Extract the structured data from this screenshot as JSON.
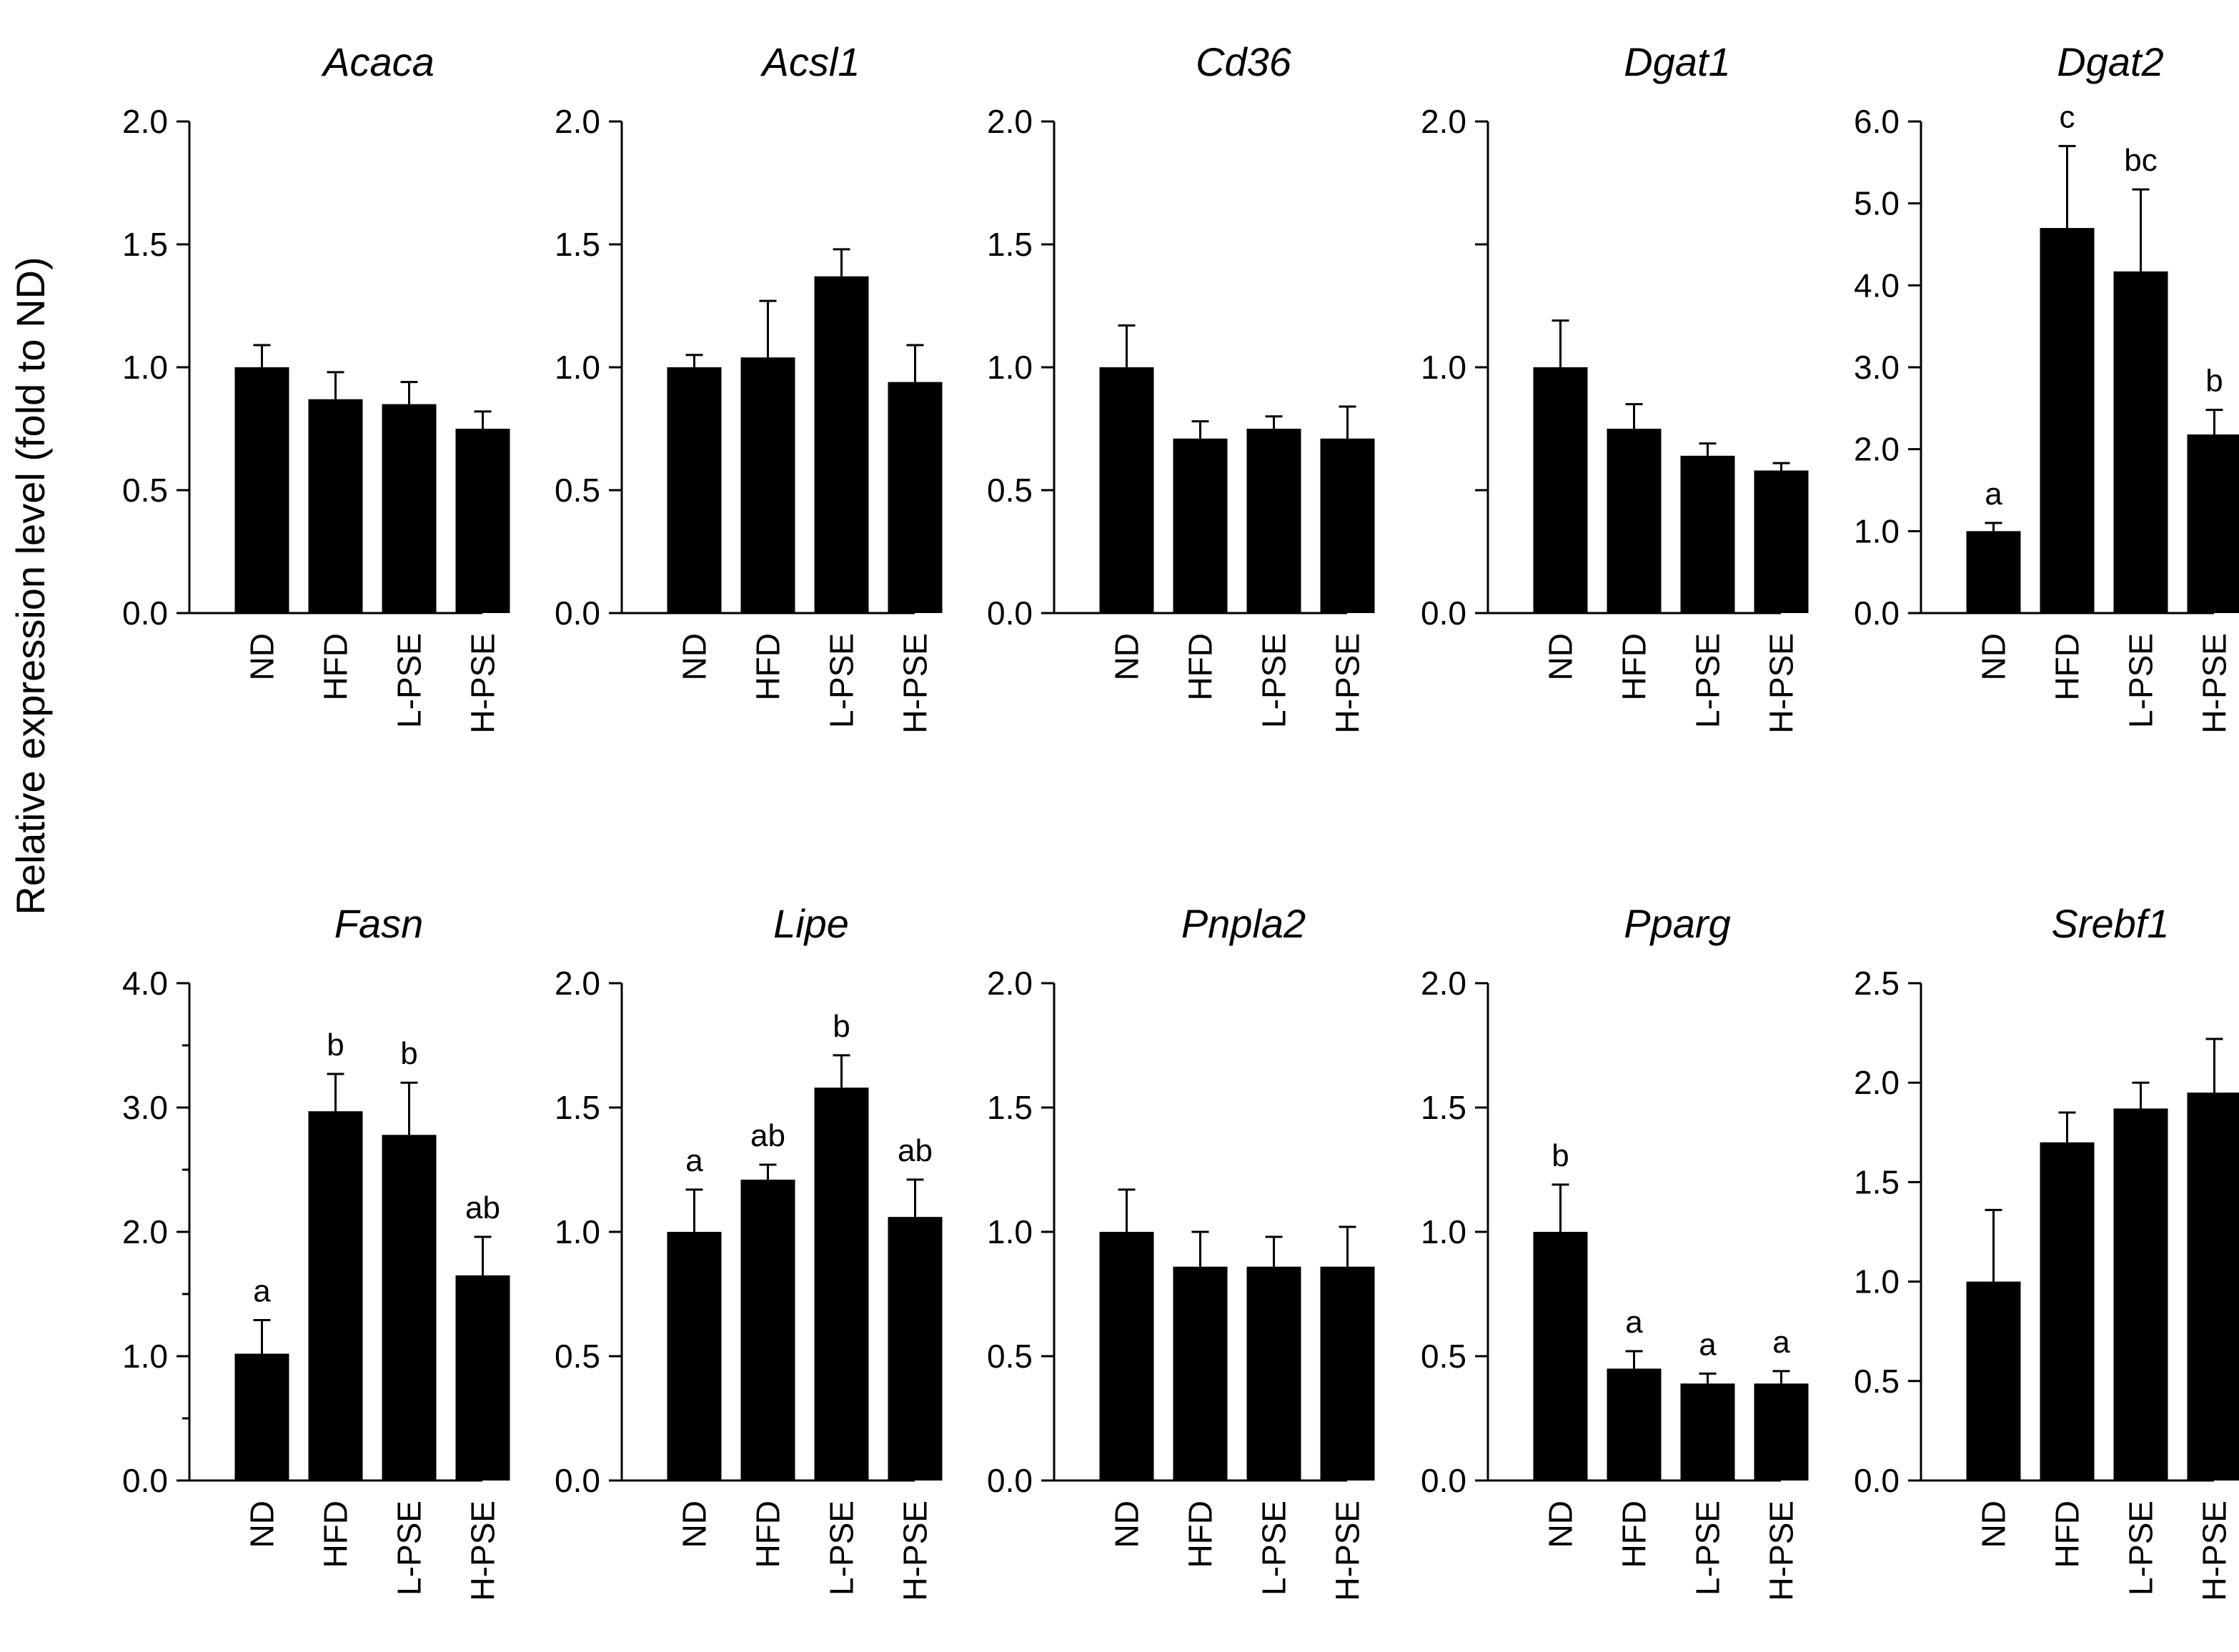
{
  "figure": {
    "ylabel": "Relative expression level (fold to ND)"
  },
  "chart_data": [
    {
      "type": "bar",
      "title": "Acaca",
      "categories": [
        "ND",
        "HFD",
        "L-PSE",
        "H-PSE"
      ],
      "values": [
        1.0,
        0.87,
        0.85,
        0.75
      ],
      "errors": [
        0.09,
        0.11,
        0.09,
        0.07
      ],
      "significance": [
        "",
        "",
        "",
        ""
      ],
      "ylim": [
        0,
        2.0
      ],
      "yticks": [
        "0.0",
        "0.5",
        "1.0",
        "1.5",
        "2.0"
      ],
      "minor_ticks": false
    },
    {
      "type": "bar",
      "title": "Acsl1",
      "categories": [
        "ND",
        "HFD",
        "L-PSE",
        "H-PSE"
      ],
      "values": [
        1.0,
        1.04,
        1.37,
        0.94
      ],
      "errors": [
        0.05,
        0.23,
        0.11,
        0.15
      ],
      "significance": [
        "",
        "",
        "",
        ""
      ],
      "ylim": [
        0,
        2.0
      ],
      "yticks": [
        "0.0",
        "0.5",
        "1.0",
        "1.5",
        "2.0"
      ],
      "minor_ticks": false
    },
    {
      "type": "bar",
      "title": "Cd36",
      "categories": [
        "ND",
        "HFD",
        "L-PSE",
        "H-PSE"
      ],
      "values": [
        1.0,
        0.71,
        0.75,
        0.71
      ],
      "errors": [
        0.17,
        0.07,
        0.05,
        0.13
      ],
      "significance": [
        "",
        "",
        "",
        ""
      ],
      "ylim": [
        0,
        2.0
      ],
      "yticks": [
        "0.0",
        "0.5",
        "1.0",
        "1.5",
        "2.0"
      ],
      "minor_ticks": false
    },
    {
      "type": "bar",
      "title": "Dgat1",
      "categories": [
        "ND",
        "HFD",
        "L-PSE",
        "H-PSE"
      ],
      "values": [
        1.0,
        0.75,
        0.64,
        0.58
      ],
      "errors": [
        0.19,
        0.1,
        0.05,
        0.03
      ],
      "significance": [
        "",
        "",
        "",
        ""
      ],
      "ylim": [
        0,
        2.0
      ],
      "yticks": [
        "0.0",
        "",
        "1.0",
        "",
        "2.0"
      ],
      "minor_ticks": false
    },
    {
      "type": "bar",
      "title": "Dgat2",
      "categories": [
        "ND",
        "HFD",
        "L-PSE",
        "H-PSE"
      ],
      "values": [
        1.0,
        4.7,
        4.17,
        2.18
      ],
      "errors": [
        0.1,
        1.0,
        1.0,
        0.3
      ],
      "significance": [
        "a",
        "c",
        "bc",
        "b"
      ],
      "ylim": [
        0,
        6.0
      ],
      "yticks": [
        "0.0",
        "1.0",
        "2.0",
        "3.0",
        "4.0",
        "5.0",
        "6.0"
      ],
      "minor_ticks": false
    },
    {
      "type": "bar",
      "title": "Fasn",
      "categories": [
        "ND",
        "HFD",
        "L-PSE",
        "H-PSE"
      ],
      "values": [
        1.02,
        2.97,
        2.78,
        1.65
      ],
      "errors": [
        0.27,
        0.3,
        0.42,
        0.31
      ],
      "significance": [
        "a",
        "b",
        "b",
        "ab"
      ],
      "ylim": [
        0,
        4.0
      ],
      "yticks": [
        "0.0",
        "1.0",
        "2.0",
        "3.0",
        "4.0"
      ],
      "minor_ticks": true
    },
    {
      "type": "bar",
      "title": "Lipe",
      "categories": [
        "ND",
        "HFD",
        "L-PSE",
        "H-PSE"
      ],
      "values": [
        1.0,
        1.21,
        1.58,
        1.06
      ],
      "errors": [
        0.17,
        0.06,
        0.13,
        0.15
      ],
      "significance": [
        "a",
        "ab",
        "b",
        "ab"
      ],
      "ylim": [
        0,
        2.0
      ],
      "yticks": [
        "0.0",
        "0.5",
        "1.0",
        "1.5",
        "2.0"
      ],
      "minor_ticks": false
    },
    {
      "type": "bar",
      "title": "Pnpla2",
      "categories": [
        "ND",
        "HFD",
        "L-PSE",
        "H-PSE"
      ],
      "values": [
        1.0,
        0.86,
        0.86,
        0.86
      ],
      "errors": [
        0.17,
        0.14,
        0.12,
        0.16
      ],
      "significance": [
        "",
        "",
        "",
        ""
      ],
      "ylim": [
        0,
        2.0
      ],
      "yticks": [
        "0.0",
        "0.5",
        "1.0",
        "1.5",
        "2.0"
      ],
      "minor_ticks": false
    },
    {
      "type": "bar",
      "title": "Pparg",
      "categories": [
        "ND",
        "HFD",
        "L-PSE",
        "H-PSE"
      ],
      "values": [
        1.0,
        0.45,
        0.39,
        0.39
      ],
      "errors": [
        0.19,
        0.07,
        0.04,
        0.05
      ],
      "significance": [
        "b",
        "a",
        "a",
        "a"
      ],
      "ylim": [
        0,
        2.0
      ],
      "yticks": [
        "0.0",
        "0.5",
        "1.0",
        "1.5",
        "2.0"
      ],
      "minor_ticks": false
    },
    {
      "type": "bar",
      "title": "Srebf1",
      "categories": [
        "ND",
        "HFD",
        "L-PSE",
        "H-PSE"
      ],
      "values": [
        1.0,
        1.7,
        1.87,
        1.95
      ],
      "errors": [
        0.36,
        0.15,
        0.13,
        0.27
      ],
      "significance": [
        "",
        "",
        "",
        ""
      ],
      "ylim": [
        0,
        2.5
      ],
      "yticks": [
        "0.0",
        "0.5",
        "1.0",
        "1.5",
        "2.0",
        "2.5"
      ],
      "minor_ticks": false
    }
  ]
}
